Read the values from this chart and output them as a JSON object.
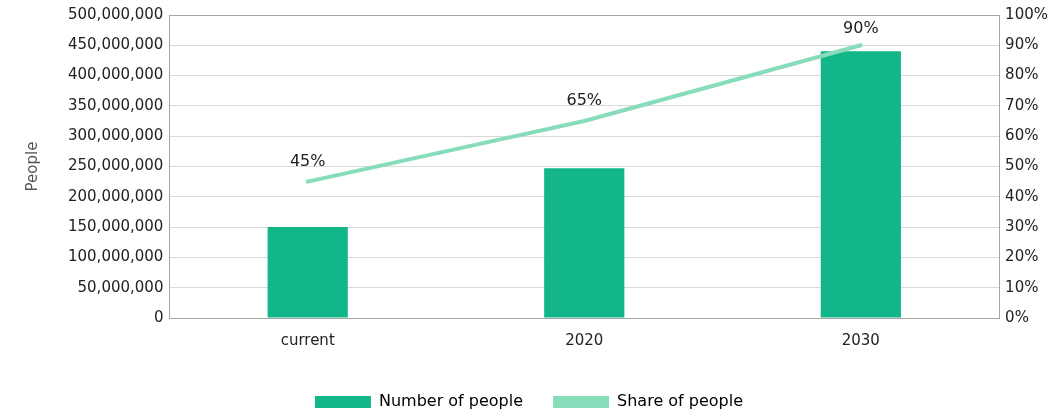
{
  "chart_data": {
    "type": "bar",
    "ylabel": "People",
    "categories": [
      "current",
      "2020",
      "2030"
    ],
    "series": [
      {
        "name": "Number of people",
        "color": "#13b689",
        "values": [
          150000000,
          247000000,
          440000000
        ]
      },
      {
        "name": "Share of people",
        "type": "line",
        "axis": "y2",
        "color": "#87dcb9",
        "values": [
          45,
          65,
          90
        ],
        "value_labels": [
          "45%",
          "65%",
          "90%"
        ]
      }
    ],
    "ylim": [
      0,
      500000000
    ],
    "yticks": [
      {
        "value": 0,
        "label": "0"
      },
      {
        "value": 50000000,
        "label": "50,000,000"
      },
      {
        "value": 100000000,
        "label": "100,000,000"
      },
      {
        "value": 150000000,
        "label": "150,000,000"
      },
      {
        "value": 200000000,
        "label": "200,000,000"
      },
      {
        "value": 250000000,
        "label": "250,000,000"
      },
      {
        "value": 300000000,
        "label": "300,000,000"
      },
      {
        "value": 350000000,
        "label": "350,000,000"
      },
      {
        "value": 400000000,
        "label": "400,000,000"
      },
      {
        "value": 450000000,
        "label": "450,000,000"
      },
      {
        "value": 500000000,
        "label": "500,000,000"
      }
    ],
    "y2lim": [
      0,
      100
    ],
    "y2ticks": [
      {
        "value": 0,
        "label": "0%"
      },
      {
        "value": 10,
        "label": "10%"
      },
      {
        "value": 20,
        "label": "20%"
      },
      {
        "value": 30,
        "label": "30%"
      },
      {
        "value": 40,
        "label": "40%"
      },
      {
        "value": 50,
        "label": "50%"
      },
      {
        "value": 60,
        "label": "60%"
      },
      {
        "value": 70,
        "label": "70%"
      },
      {
        "value": 80,
        "label": "80%"
      },
      {
        "value": 90,
        "label": "90%"
      },
      {
        "value": 100,
        "label": "100%"
      }
    ],
    "grid": "y",
    "legend": "bottom",
    "marker": "none",
    "line_style": "solid"
  }
}
